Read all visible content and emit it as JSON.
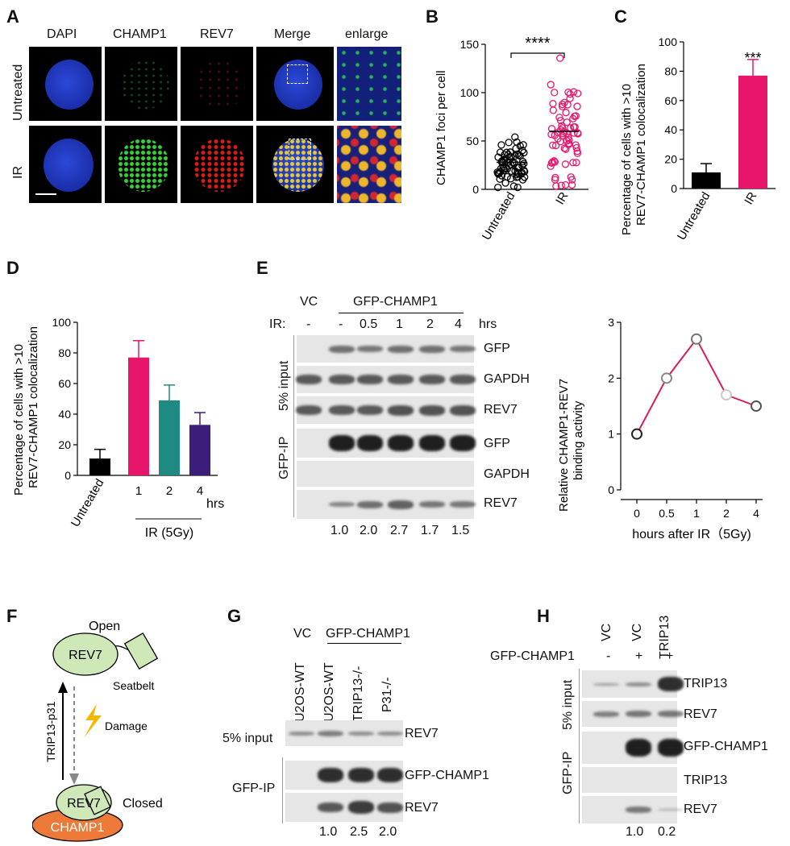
{
  "panels": {
    "A": {
      "letter": "A",
      "columns": [
        "DAPI",
        "CHAMP1",
        "REV7",
        "Merge",
        "enlarge"
      ],
      "rows": [
        "Untreated",
        "IR"
      ]
    },
    "B": {
      "letter": "B",
      "ylabel": "CHAMP1 foci per cell",
      "significance": "****"
    },
    "C": {
      "letter": "C",
      "ylabel_line1": "Percentage of cells with >10",
      "ylabel_line2": "REV7-CHAMP1 colocalization",
      "significance": "***"
    },
    "D": {
      "letter": "D",
      "ylabel_line1": "Percentage of cells with >10",
      "ylabel_line2": "REV7-CHAMP1 colocalization",
      "hrs_label": "hrs",
      "ir_label": "IR (5Gy)"
    },
    "E": {
      "letter": "E",
      "vc": "VC",
      "construct": "GFP-CHAMP1",
      "ir_prefix": "IR:",
      "lanes": [
        "-",
        "-",
        "0.5",
        "1",
        "2",
        "4"
      ],
      "hrs": "hrs",
      "side_input": "5% input",
      "side_ip": "GFP-IP",
      "bands": [
        "GFP",
        "GAPDH",
        "REV7",
        "GFP",
        "GAPDH",
        "REV7"
      ],
      "quant": [
        "1.0",
        "2.0",
        "2.7",
        "1.7",
        "1.5"
      ],
      "chart_ylabel_line1": "Relative CHAMP1-REV7",
      "chart_ylabel_line2": "binding activity",
      "chart_xlabel": "hours after IR（5Gy)"
    },
    "F": {
      "letter": "F",
      "open": "Open",
      "rev7": "REV7",
      "seatbelt": "Seatbelt",
      "damage": "Damage",
      "trip": "TRIP13-p31",
      "rev7_closed": "REV7",
      "closed": "Closed",
      "champ1": "CHAMP1"
    },
    "G": {
      "letter": "G",
      "vc": "VC",
      "construct": "GFP-CHAMP1",
      "lanes": [
        "U2OS-WT",
        "U2OS-WT",
        "TRIP13-/-",
        "P31-/-"
      ],
      "side_input": "5% input",
      "side_ip": "GFP-IP",
      "bands": [
        "REV7",
        "GFP-CHAMP1",
        "REV7"
      ],
      "quant": [
        "1.0",
        "2.5",
        "2.0"
      ]
    },
    "H": {
      "letter": "H",
      "lanes": [
        "VC",
        "VC",
        "TRIP13"
      ],
      "construct": "GFP-CHAMP1",
      "signs": [
        "-",
        "+",
        "+"
      ],
      "side_input": "5% input",
      "side_ip": "GFP-IP",
      "bands": [
        "TRIP13",
        "REV7",
        "GFP-CHAMP1",
        "TRIP13",
        "REV7"
      ],
      "quant": [
        "1.0",
        "0.2"
      ]
    }
  },
  "chart_data": [
    {
      "id": "B",
      "type": "scatter",
      "categories": [
        "Untreated",
        "IR"
      ],
      "ylim": [
        0,
        150
      ],
      "yticks": [
        0,
        50,
        100,
        150
      ],
      "ylabel": "CHAMP1 foci per cell",
      "series": [
        {
          "name": "Untreated",
          "mean": 28,
          "color": "#000000"
        },
        {
          "name": "IR",
          "mean": 60,
          "color": "#e8166b"
        }
      ]
    },
    {
      "id": "C",
      "type": "bar",
      "categories": [
        "Untreated",
        "IR"
      ],
      "values": [
        11,
        77
      ],
      "errors": [
        6,
        11
      ],
      "ylim": [
        0,
        100
      ],
      "yticks": [
        0,
        20,
        40,
        60,
        80,
        100
      ],
      "colors": [
        "#000000",
        "#e8166b"
      ]
    },
    {
      "id": "D",
      "type": "bar",
      "categories": [
        "Untreated",
        "1",
        "2",
        "4"
      ],
      "values": [
        11,
        77,
        49,
        33
      ],
      "errors": [
        6,
        11,
        10,
        8
      ],
      "ylim": [
        0,
        100
      ],
      "yticks": [
        0,
        20,
        40,
        60,
        80,
        100
      ],
      "colors": [
        "#000000",
        "#e8166b",
        "#1f8a84",
        "#3b1e7a"
      ]
    },
    {
      "id": "E",
      "type": "line",
      "x": [
        "0",
        "0.5",
        "1",
        "2",
        "4"
      ],
      "y": [
        1.0,
        2.0,
        2.7,
        1.7,
        1.5
      ],
      "ylim": [
        0,
        3
      ],
      "yticks": [
        0,
        1,
        2,
        3
      ],
      "xlabel": "hours after IR（5Gy)",
      "ylabel": "Relative CHAMP1-REV7 binding activity",
      "color": "#d81b60"
    }
  ]
}
